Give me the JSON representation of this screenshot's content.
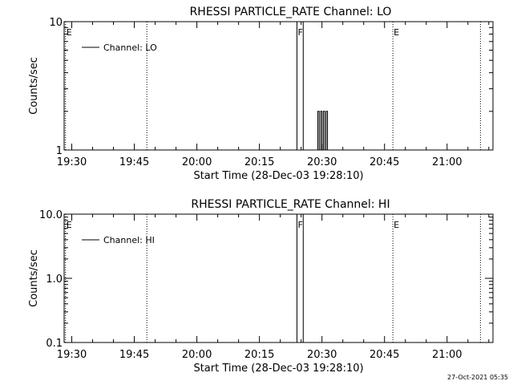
{
  "chart_data": [
    {
      "type": "line",
      "title": "RHESSI PARTICLE_RATE Channel: LO",
      "xlabel": "Start Time (28-Dec-03 19:28:10)",
      "ylabel": "Counts/sec",
      "yscale": "log",
      "ylim": [
        1,
        10
      ],
      "yticks": [
        {
          "value": 1,
          "label": "1"
        },
        {
          "value": 10,
          "label": "10"
        }
      ],
      "xlim": [
        "19:28:10",
        "21:11:00"
      ],
      "xticks": [
        {
          "value": "19:30",
          "label": "19:30"
        },
        {
          "value": "19:45",
          "label": "19:45"
        },
        {
          "value": "20:00",
          "label": "20:00"
        },
        {
          "value": "20:15",
          "label": "20:15"
        },
        {
          "value": "20:30",
          "label": "20:30"
        },
        {
          "value": "20:45",
          "label": "20:45"
        },
        {
          "value": "21:00",
          "label": "21:00"
        }
      ],
      "legend": {
        "placement": "top-left",
        "entries": [
          "Channel: LO"
        ]
      },
      "flag_lines": [
        {
          "time": "19:28:30",
          "label": "E",
          "style": "dotted"
        },
        {
          "time": "19:48:00",
          "label": "",
          "style": "dotted"
        },
        {
          "time": "20:24:00",
          "label": "F",
          "style": "solid"
        },
        {
          "time": "20:25:30",
          "label": "",
          "style": "solid"
        },
        {
          "time": "20:47:00",
          "label": "E",
          "style": "dotted"
        },
        {
          "time": "21:08:00",
          "label": "",
          "style": "dotted"
        }
      ],
      "series": [
        {
          "name": "Channel: LO",
          "points": [
            {
              "t": "20:29:00",
              "y": 1
            },
            {
              "t": "20:29:00",
              "y": 2
            },
            {
              "t": "20:29:20",
              "y": 2
            },
            {
              "t": "20:29:20",
              "y": 1
            },
            {
              "t": "20:29:40",
              "y": 1
            },
            {
              "t": "20:29:40",
              "y": 2
            },
            {
              "t": "20:30:00",
              "y": 2
            },
            {
              "t": "20:30:00",
              "y": 1
            },
            {
              "t": "20:30:20",
              "y": 1
            },
            {
              "t": "20:30:20",
              "y": 2
            },
            {
              "t": "20:30:40",
              "y": 2
            },
            {
              "t": "20:30:40",
              "y": 1
            },
            {
              "t": "20:31:00",
              "y": 1
            },
            {
              "t": "20:31:00",
              "y": 2
            },
            {
              "t": "20:31:20",
              "y": 2
            },
            {
              "t": "20:31:20",
              "y": 1
            }
          ]
        }
      ]
    },
    {
      "type": "line",
      "title": "RHESSI PARTICLE_RATE Channel: HI",
      "xlabel": "Start Time (28-Dec-03 19:28:10)",
      "ylabel": "Counts/sec",
      "yscale": "log",
      "ylim": [
        0.1,
        10
      ],
      "yticks": [
        {
          "value": 0.1,
          "label": "0.1"
        },
        {
          "value": 1,
          "label": "1.0"
        },
        {
          "value": 10,
          "label": "10.0"
        }
      ],
      "xlim": [
        "19:28:10",
        "21:11:00"
      ],
      "xticks": [
        {
          "value": "19:30",
          "label": "19:30"
        },
        {
          "value": "19:45",
          "label": "19:45"
        },
        {
          "value": "20:00",
          "label": "20:00"
        },
        {
          "value": "20:15",
          "label": "20:15"
        },
        {
          "value": "20:30",
          "label": "20:30"
        },
        {
          "value": "20:45",
          "label": "20:45"
        },
        {
          "value": "21:00",
          "label": "21:00"
        }
      ],
      "legend": {
        "placement": "top-left",
        "entries": [
          "Channel: HI"
        ]
      },
      "flag_lines": [
        {
          "time": "19:28:30",
          "label": "E",
          "style": "dotted"
        },
        {
          "time": "19:48:00",
          "label": "",
          "style": "dotted"
        },
        {
          "time": "20:24:00",
          "label": "F",
          "style": "solid"
        },
        {
          "time": "20:25:30",
          "label": "",
          "style": "solid"
        },
        {
          "time": "20:47:00",
          "label": "E",
          "style": "dotted"
        },
        {
          "time": "21:08:00",
          "label": "",
          "style": "dotted"
        }
      ],
      "series": [
        {
          "name": "Channel: HI",
          "points": []
        }
      ]
    }
  ],
  "footer": {
    "timestamp": "27-Oct-2021 05:35"
  },
  "colors": {
    "background": "#ffffff",
    "foreground": "#000000"
  }
}
